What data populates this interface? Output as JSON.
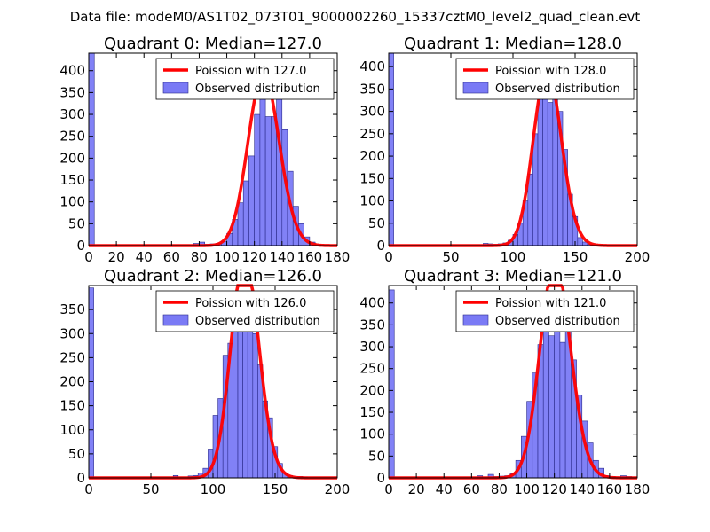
{
  "figure_title": "Data file: modeM0/AS1T02_073T01_9000002260_15337cztM0_level2_quad_clean.evt",
  "colors": {
    "hist_fill": "#7a7af5",
    "hist_stroke": "#2a2a8a",
    "fit_line": "#ff0000"
  },
  "chart_data": [
    {
      "type": "histogram+line",
      "title": "Quadrant 0: Median=127.0",
      "xlim": [
        0,
        180
      ],
      "ylim": [
        0,
        440
      ],
      "xticks": [
        0,
        20,
        40,
        60,
        80,
        100,
        120,
        140,
        160,
        180
      ],
      "yticks": [
        0,
        50,
        100,
        150,
        200,
        250,
        300,
        350,
        400
      ],
      "bin_width": 4,
      "bins": [
        [
          0,
          440
        ],
        [
          76,
          5
        ],
        [
          80,
          8
        ],
        [
          84,
          3
        ],
        [
          88,
          4
        ],
        [
          92,
          5
        ],
        [
          96,
          10
        ],
        [
          100,
          28
        ],
        [
          104,
          60
        ],
        [
          108,
          98
        ],
        [
          112,
          148
        ],
        [
          116,
          205
        ],
        [
          120,
          300
        ],
        [
          124,
          358
        ],
        [
          128,
          295
        ],
        [
          132,
          295
        ],
        [
          136,
          345
        ],
        [
          140,
          265
        ],
        [
          144,
          170
        ],
        [
          148,
          90
        ],
        [
          152,
          50
        ],
        [
          156,
          20
        ],
        [
          160,
          8
        ],
        [
          164,
          3
        ]
      ],
      "fit_mean": 127.0,
      "legend": [
        "Poission with 127.0",
        "Observed distribution"
      ]
    },
    {
      "type": "histogram+line",
      "title": "Quadrant 1: Median=128.0",
      "xlim": [
        0,
        200
      ],
      "ylim": [
        0,
        430
      ],
      "xticks": [
        0,
        50,
        100,
        150,
        200
      ],
      "yticks": [
        0,
        50,
        100,
        150,
        200,
        250,
        300,
        350,
        400
      ],
      "bin_width": 4,
      "bins": [
        [
          0,
          430
        ],
        [
          76,
          5
        ],
        [
          80,
          4
        ],
        [
          84,
          3
        ],
        [
          88,
          4
        ],
        [
          92,
          6
        ],
        [
          96,
          12
        ],
        [
          100,
          25
        ],
        [
          104,
          50
        ],
        [
          108,
          100
        ],
        [
          112,
          160
        ],
        [
          116,
          250
        ],
        [
          120,
          345
        ],
        [
          124,
          380
        ],
        [
          128,
          320
        ],
        [
          132,
          395
        ],
        [
          136,
          300
        ],
        [
          140,
          215
        ],
        [
          144,
          115
        ],
        [
          148,
          65
        ],
        [
          152,
          18
        ],
        [
          156,
          8
        ],
        [
          160,
          3
        ],
        [
          164,
          2
        ]
      ],
      "fit_mean": 128.0,
      "legend": [
        "Poission with 128.0",
        "Observed distribution"
      ]
    },
    {
      "type": "histogram+line",
      "title": "Quadrant 2: Median=126.0",
      "xlim": [
        0,
        200
      ],
      "ylim": [
        0,
        400
      ],
      "xticks": [
        0,
        50,
        100,
        150,
        200
      ],
      "yticks": [
        0,
        50,
        100,
        150,
        200,
        250,
        300,
        350
      ],
      "bin_width": 4,
      "bins": [
        [
          0,
          395
        ],
        [
          68,
          5
        ],
        [
          80,
          4
        ],
        [
          84,
          5
        ],
        [
          88,
          10
        ],
        [
          92,
          20
        ],
        [
          96,
          60
        ],
        [
          100,
          130
        ],
        [
          104,
          165
        ],
        [
          108,
          255
        ],
        [
          112,
          280
        ],
        [
          116,
          320
        ],
        [
          120,
          360
        ],
        [
          124,
          330
        ],
        [
          128,
          350
        ],
        [
          132,
          300
        ],
        [
          136,
          235
        ],
        [
          140,
          160
        ],
        [
          144,
          125
        ],
        [
          148,
          65
        ],
        [
          152,
          30
        ],
        [
          156,
          10
        ],
        [
          160,
          5
        ],
        [
          168,
          3
        ],
        [
          172,
          2
        ]
      ],
      "fit_mean": 126.0,
      "legend": [
        "Poission with 126.0",
        "Observed distribution"
      ]
    },
    {
      "type": "histogram+line",
      "title": "Quadrant 3: Median=121.0",
      "xlim": [
        0,
        180
      ],
      "ylim": [
        0,
        440
      ],
      "xticks": [
        0,
        20,
        40,
        60,
        80,
        100,
        120,
        140,
        160,
        180
      ],
      "yticks": [
        0,
        50,
        100,
        150,
        200,
        250,
        300,
        350,
        400
      ],
      "bin_width": 4,
      "bins": [
        [
          0,
          430
        ],
        [
          64,
          5
        ],
        [
          72,
          8
        ],
        [
          76,
          3
        ],
        [
          80,
          4
        ],
        [
          84,
          5
        ],
        [
          88,
          10
        ],
        [
          92,
          40
        ],
        [
          96,
          95
        ],
        [
          100,
          175
        ],
        [
          104,
          240
        ],
        [
          108,
          305
        ],
        [
          112,
          395
        ],
        [
          116,
          325
        ],
        [
          120,
          345
        ],
        [
          124,
          310
        ],
        [
          128,
          385
        ],
        [
          132,
          270
        ],
        [
          136,
          190
        ],
        [
          140,
          130
        ],
        [
          144,
          80
        ],
        [
          148,
          40
        ],
        [
          152,
          22
        ],
        [
          156,
          5
        ],
        [
          160,
          3
        ],
        [
          168,
          5
        ],
        [
          172,
          3
        ]
      ],
      "fit_mean": 121.0,
      "legend": [
        "Poission with 121.0",
        "Observed distribution"
      ]
    }
  ]
}
